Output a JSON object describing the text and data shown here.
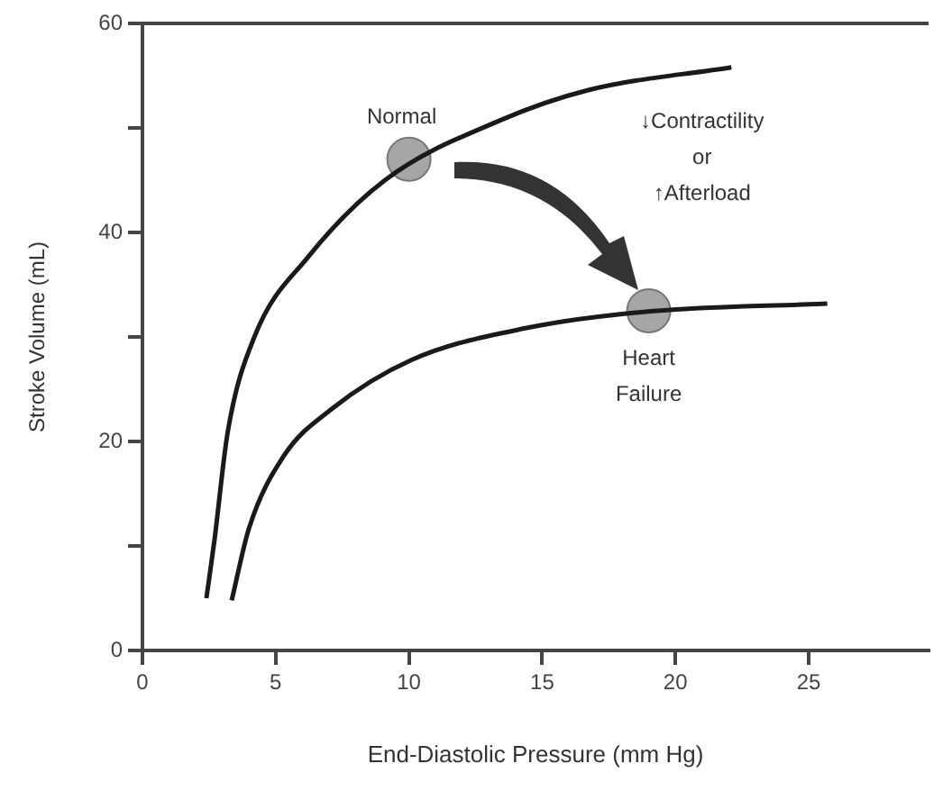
{
  "chart_data": {
    "type": "line",
    "xlabel": "End-Diastolic Pressure (mm Hg)",
    "ylabel": "Stroke Volume (mL)",
    "xlim": [
      0,
      29.5
    ],
    "xticks": [
      0,
      5,
      10,
      15,
      20,
      25
    ],
    "ylim": [
      0,
      60
    ],
    "yticks": [
      0,
      {
        "value": 10,
        "label": null
      },
      20,
      {
        "value": 30,
        "label": null
      },
      40,
      {
        "value": 50,
        "label": null
      },
      60
    ],
    "grid": false,
    "legend": false,
    "marker": "none",
    "line_style": "solid",
    "series": [
      {
        "type": "line",
        "color": "#1a1a1a",
        "x": [
          2.4,
          2.7,
          3.2,
          4.2,
          6.2,
          9.1,
          13.4,
          16.7,
          22.1
        ],
        "values": [
          5,
          10.5,
          20.9,
          30,
          37.6,
          45,
          50.7,
          53.6,
          55.8
        ]
      },
      {
        "type": "line",
        "color": "#1a1a1a",
        "x": [
          3.35,
          4,
          5.3,
          7.1,
          10.1,
          14.5,
          18.8,
          25.7
        ],
        "values": [
          4.8,
          11.7,
          18.6,
          23.1,
          27.8,
          30.9,
          32.4,
          33.2
        ]
      },
      {
        "type": "scatter",
        "color": "#a6a6a6",
        "marker": "circle",
        "x": [
          10,
          19
        ],
        "values": [
          47,
          32.5
        ]
      }
    ],
    "annotations": [
      {
        "text": "Normal",
        "x": 10,
        "y": 47
      },
      {
        "text": "Heart Failure",
        "x": 19,
        "y": 32.5
      },
      "↓Contractility\nor\n↑Afterload"
    ]
  }
}
